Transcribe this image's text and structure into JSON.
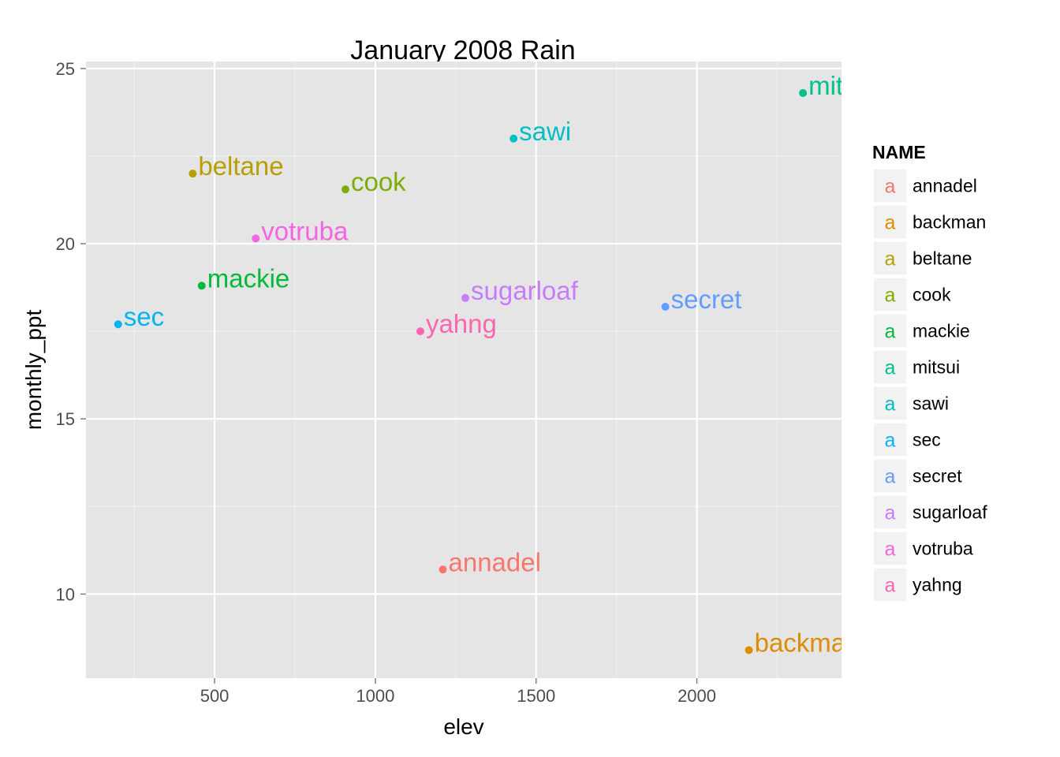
{
  "chart_data": {
    "type": "scatter",
    "title": "January 2008 Rain",
    "xlabel": "elev",
    "ylabel": "monthly_ppt",
    "xlim": [
      100,
      2450
    ],
    "ylim": [
      7.6,
      25.2
    ],
    "x_ticks": [
      500,
      1000,
      1500,
      2000
    ],
    "y_ticks": [
      10,
      15,
      20,
      25
    ],
    "grid": true,
    "legend": {
      "title": "NAME",
      "placement": "right",
      "key_glyph": "a"
    },
    "series": [
      {
        "name": "annadel",
        "color": "#F8766D",
        "x": 1210,
        "y": 10.7
      },
      {
        "name": "backman",
        "color": "#DE8C00",
        "x": 2162,
        "y": 8.4
      },
      {
        "name": "beltane",
        "color": "#B79F00",
        "x": 432,
        "y": 22.0
      },
      {
        "name": "cook",
        "color": "#7CAE00",
        "x": 907,
        "y": 21.55
      },
      {
        "name": "mackie",
        "color": "#00BA38",
        "x": 460,
        "y": 18.8
      },
      {
        "name": "mitsui",
        "color": "#00C08B",
        "x": 2330,
        "y": 24.3
      },
      {
        "name": "sawi",
        "color": "#00BFC4",
        "x": 1430,
        "y": 23.0
      },
      {
        "name": "sec",
        "color": "#00B4F0",
        "x": 200,
        "y": 17.7
      },
      {
        "name": "secret",
        "color": "#619CFF",
        "x": 1902,
        "y": 18.2
      },
      {
        "name": "sugarloaf",
        "color": "#C77CFF",
        "x": 1280,
        "y": 18.45
      },
      {
        "name": "votruba",
        "color": "#F564E3",
        "x": 628,
        "y": 20.15
      },
      {
        "name": "yahng",
        "color": "#FF64B0",
        "x": 1140,
        "y": 17.5
      }
    ]
  }
}
